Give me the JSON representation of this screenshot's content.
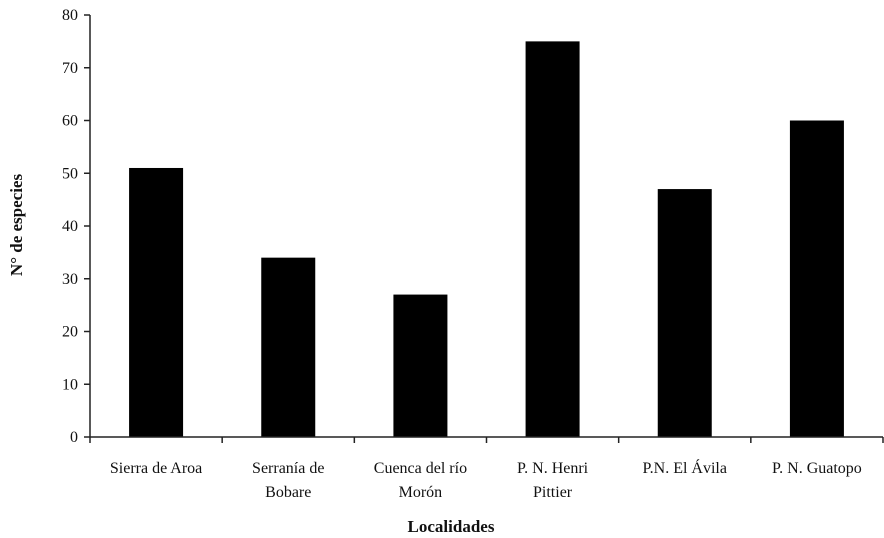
{
  "chart_data": {
    "type": "bar",
    "categories": [
      [
        "Sierra de Aroa"
      ],
      [
        "Serranía de",
        "Bobare"
      ],
      [
        "Cuenca del río",
        "Morón"
      ],
      [
        "P. N. Henri",
        "Pittier"
      ],
      [
        "P.N. El Ávila"
      ],
      [
        "P. N. Guatopo"
      ]
    ],
    "values": [
      51,
      34,
      27,
      75,
      47,
      60
    ],
    "xlabel": "Localidades",
    "ylabel": "N° de especies",
    "ylim": [
      0,
      80
    ],
    "yticks": [
      0,
      10,
      20,
      30,
      40,
      50,
      60,
      70,
      80
    ],
    "grid": false,
    "bar_color": "#000000"
  }
}
